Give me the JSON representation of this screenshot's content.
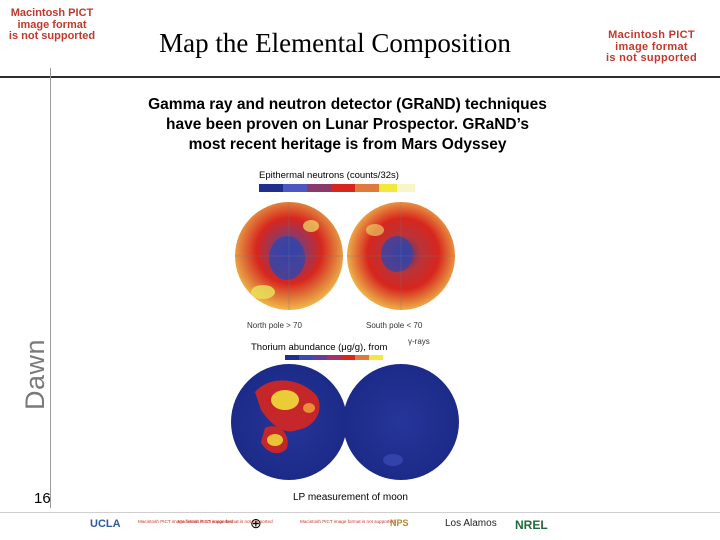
{
  "placeholders": {
    "left": [
      "Macintosh PICT",
      "image format",
      "is not supported"
    ],
    "right": [
      "Macintosh PICT",
      "image format",
      "is not supported"
    ]
  },
  "slide": {
    "title": "Map the Elemental Composition",
    "body_lines": [
      "Gamma ray and neutron detector (GRaND) techniques",
      "have been proven on Lunar Prospector. GRaND’s",
      "most recent heritage is from Mars Odyssey"
    ],
    "side_label": "Dawn",
    "page_number": "16"
  },
  "figure": {
    "neutron_title": "Epithermal neutrons (counts/32s)",
    "north_label": "North pole > 70",
    "south_label": "South pole < 70",
    "thorium_title": "Thorium abundance (μg/g), from",
    "gamma_suffix": "γ-rays",
    "caption": "LP measurement of moon",
    "colors": {
      "background_blue": "#1f2f8c",
      "hot_red": "#d7261e",
      "mid_orange": "#e07a3a",
      "yellow": "#f2e93b"
    }
  },
  "footer": {
    "logos": [
      "UCLA",
      "Los Alamos",
      "NREL",
      "NPS"
    ],
    "small_placeholders": [
      "Macintosh PICT image format is not supported",
      "Macintosh PICT image format is not supported",
      "Macintosh PICT image format is not supported"
    ]
  }
}
